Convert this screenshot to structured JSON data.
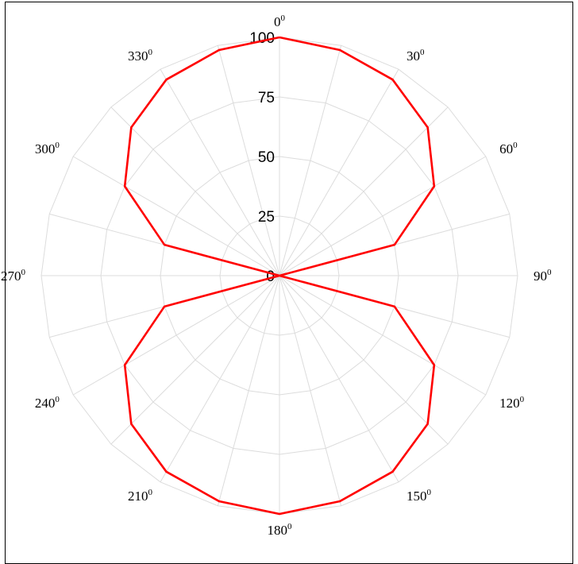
{
  "chart_data": {
    "type": "polar-line",
    "series": [
      {
        "theta_deg": [
          0,
          15,
          30,
          45,
          60,
          75,
          90,
          105,
          120,
          135,
          150,
          165,
          180,
          195,
          210,
          225,
          240,
          255,
          270,
          285,
          300,
          315,
          330,
          345,
          360
        ],
        "r": [
          100,
          98,
          95,
          88,
          75,
          50,
          0,
          50,
          75,
          88,
          95,
          98,
          100,
          98,
          95,
          88,
          75,
          50,
          0,
          50,
          75,
          88,
          95,
          98,
          100
        ],
        "color": "#ff0000"
      }
    ],
    "rlim": [
      0,
      100
    ],
    "radial_ticks": [
      0,
      25,
      50,
      75,
      100
    ],
    "radial_tick_labels": [
      "0",
      "25",
      "50",
      "75",
      "100"
    ],
    "angle_ticks_deg": [
      0,
      30,
      60,
      90,
      120,
      150,
      180,
      210,
      240,
      270,
      300,
      330
    ],
    "angle_tick_labels": [
      "0",
      "30",
      "60",
      "90",
      "120",
      "150",
      "180",
      "210",
      "240",
      "270",
      "300",
      "330"
    ],
    "angle_label_suffix": "0",
    "angular_grid_step_deg": 15,
    "grid": true,
    "zero_direction": "top",
    "direction": "clockwise"
  }
}
